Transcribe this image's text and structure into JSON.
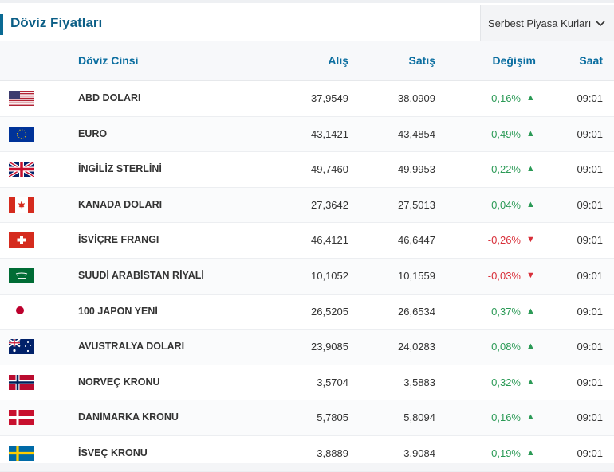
{
  "header": {
    "title": "Döviz Fiyatları",
    "dropdown_label": "Serbest Piyasa Kurları"
  },
  "columns": {
    "name": "Döviz Cinsi",
    "buy": "Alış",
    "sell": "Satış",
    "change": "Değişim",
    "time": "Saat"
  },
  "rows": [
    {
      "flag": "us-flag-icon",
      "name": "ABD DOLARI",
      "buy": "37,9549",
      "sell": "38,0909",
      "change": "0,16%",
      "dir": "up",
      "arrow": "▲",
      "time": "09:01"
    },
    {
      "flag": "eu-flag-icon",
      "name": "EURO",
      "buy": "43,1421",
      "sell": "43,4854",
      "change": "0,49%",
      "dir": "up",
      "arrow": "▲",
      "time": "09:01"
    },
    {
      "flag": "uk-flag-icon",
      "name": "İNGİLİZ STERLİNİ",
      "buy": "49,7460",
      "sell": "49,9953",
      "change": "0,22%",
      "dir": "up",
      "arrow": "▲",
      "time": "09:01"
    },
    {
      "flag": "ca-flag-icon",
      "name": "KANADA DOLARI",
      "buy": "27,3642",
      "sell": "27,5013",
      "change": "0,04%",
      "dir": "up",
      "arrow": "▲",
      "time": "09:01"
    },
    {
      "flag": "ch-flag-icon",
      "name": "İSVİÇRE FRANGI",
      "buy": "46,4121",
      "sell": "46,6447",
      "change": "-0,26%",
      "dir": "down",
      "arrow": "▼",
      "time": "09:01"
    },
    {
      "flag": "sa-flag-icon",
      "name": "SUUDİ ARABİSTAN RİYALİ",
      "buy": "10,1052",
      "sell": "10,1559",
      "change": "-0,03%",
      "dir": "down",
      "arrow": "▼",
      "time": "09:01"
    },
    {
      "flag": "jp-flag-icon",
      "name": "100 JAPON YENİ",
      "buy": "26,5205",
      "sell": "26,6534",
      "change": "0,37%",
      "dir": "up",
      "arrow": "▲",
      "time": "09:01"
    },
    {
      "flag": "au-flag-icon",
      "name": "AVUSTRALYA DOLARI",
      "buy": "23,9085",
      "sell": "24,0283",
      "change": "0,08%",
      "dir": "up",
      "arrow": "▲",
      "time": "09:01"
    },
    {
      "flag": "no-flag-icon",
      "name": "NORVEÇ KRONU",
      "buy": "3,5704",
      "sell": "3,5883",
      "change": "0,32%",
      "dir": "up",
      "arrow": "▲",
      "time": "09:01"
    },
    {
      "flag": "dk-flag-icon",
      "name": "DANİMARKA KRONU",
      "buy": "5,7805",
      "sell": "5,8094",
      "change": "0,16%",
      "dir": "up",
      "arrow": "▲",
      "time": "09:01"
    },
    {
      "flag": "se-flag-icon",
      "name": "İSVEÇ KRONU",
      "buy": "3,8889",
      "sell": "3,9084",
      "change": "0,19%",
      "dir": "up",
      "arrow": "▲",
      "time": "09:01"
    }
  ],
  "colors": {
    "accent": "#0b6ea0",
    "up": "#2b9a56",
    "down": "#d8303a"
  }
}
